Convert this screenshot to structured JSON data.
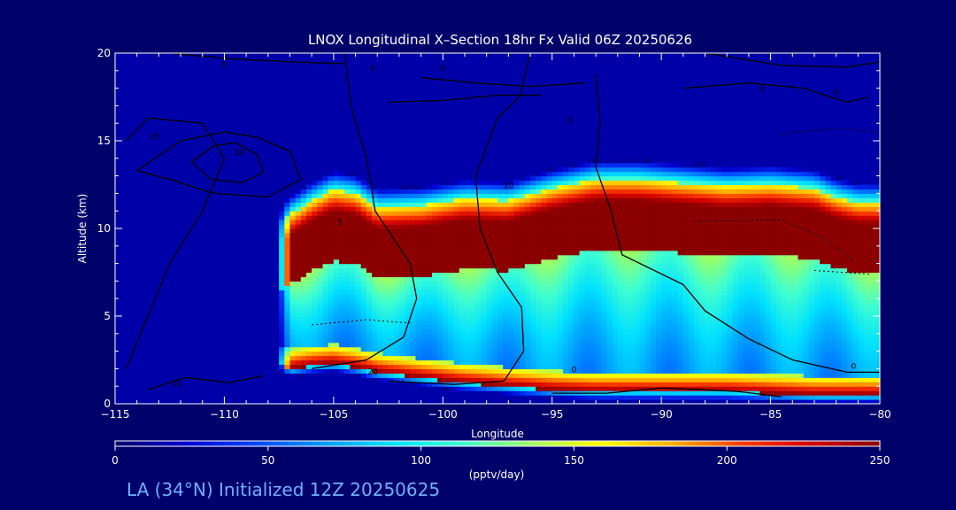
{
  "chart_data": {
    "type": "heatmap",
    "title": "LNOX Longitudinal X–Section 18hr  Fx Valid 06Z 20250626",
    "xlabel": "Longitude",
    "ylabel": "Altitude (km)",
    "xlim": [
      -115,
      -80
    ],
    "ylim": [
      0,
      20
    ],
    "x_ticks": [
      -115,
      -110,
      -105,
      -100,
      -95,
      -90,
      -85,
      -80
    ],
    "x_tick_labels": [
      "−115",
      "−110",
      "−105",
      "−100",
      "−95",
      "−90",
      "−85",
      "−80"
    ],
    "y_ticks": [
      0,
      5,
      10,
      15,
      20
    ],
    "y_tick_labels": [
      "0",
      "5",
      "10",
      "15",
      "20"
    ],
    "colorbar": {
      "label": "(pptv/day)",
      "min": 0,
      "max": 250,
      "ticks": [
        0,
        50,
        100,
        150,
        200,
        250
      ],
      "tick_labels": [
        "0",
        "50",
        "100",
        "150",
        "200",
        "250"
      ],
      "colors": [
        "#00006b",
        "#0000cc",
        "#0044ff",
        "#0099ff",
        "#00e0ff",
        "#40ffd0",
        "#a0ff60",
        "#ffff00",
        "#ffb000",
        "#ff4000",
        "#d00000",
        "#8b0000"
      ]
    },
    "band_profile": [
      {
        "lon": -107.6,
        "top": 10.3,
        "base": 2.2
      },
      {
        "lon": -107.0,
        "top": 10.8,
        "base": 2.0
      },
      {
        "lon": -106.0,
        "top": 11.6,
        "base": 2.2
      },
      {
        "lon": -105.0,
        "top": 12.2,
        "base": 2.3
      },
      {
        "lon": -104.0,
        "top": 12.0,
        "base": 2.1
      },
      {
        "lon": -103.0,
        "top": 11.2,
        "base": 1.8
      },
      {
        "lon": -101.0,
        "top": 11.3,
        "base": 1.5
      },
      {
        "lon": -99.0,
        "top": 11.7,
        "base": 1.2
      },
      {
        "lon": -97.0,
        "top": 11.6,
        "base": 1.0
      },
      {
        "lon": -95.0,
        "top": 12.3,
        "base": 0.8
      },
      {
        "lon": -93.0,
        "top": 12.8,
        "base": 0.7
      },
      {
        "lon": -91.0,
        "top": 12.8,
        "base": 0.7
      },
      {
        "lon": -89.0,
        "top": 12.6,
        "base": 0.7
      },
      {
        "lon": -87.0,
        "top": 12.4,
        "base": 0.7
      },
      {
        "lon": -85.0,
        "top": 12.5,
        "base": 0.6
      },
      {
        "lon": -83.0,
        "top": 12.3,
        "base": 0.5
      },
      {
        "lon": -82.0,
        "top": 11.8,
        "base": 0.5
      },
      {
        "lon": -81.0,
        "top": 11.5,
        "base": 0.5
      },
      {
        "lon": -80.0,
        "top": 11.5,
        "base": 0.5
      }
    ],
    "contour_labels": [
      "0",
      "0",
      "0",
      "0",
      "0",
      "0",
      "10",
      "10",
      "10",
      "20",
      "0",
      "5",
      "0",
      "10"
    ]
  },
  "footer": {
    "run_info": "LA (34°N) Initialized 12Z 20250625"
  }
}
